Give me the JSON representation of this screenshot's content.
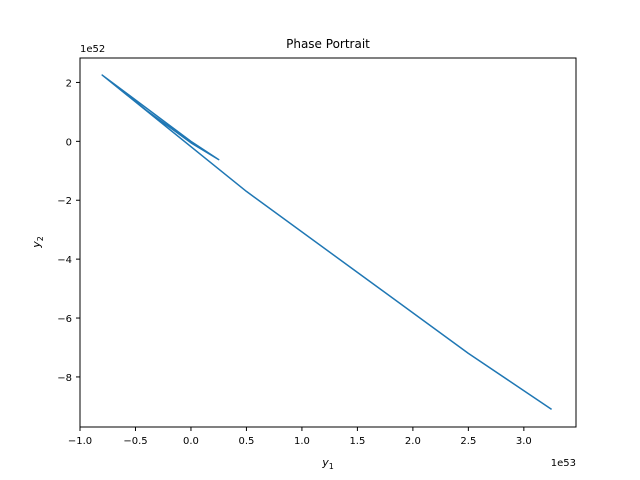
{
  "chart_data": {
    "type": "line",
    "title": "Phase Portrait",
    "xlabel": "y",
    "xlabel_sub": "1",
    "ylabel": "y",
    "ylabel_sub": "2",
    "x_offset_text": "1e53",
    "y_offset_text": "1e52",
    "x_ticks": [
      -1.0,
      -0.5,
      0.0,
      0.5,
      1.0,
      1.5,
      2.0,
      2.5,
      3.0
    ],
    "x_tick_labels": [
      "−1.0",
      "−0.5",
      "0.0",
      "0.5",
      "1.0",
      "1.5",
      "2.0",
      "2.5",
      "3.0"
    ],
    "y_ticks": [
      2,
      0,
      -2,
      -4,
      -6,
      -8
    ],
    "y_tick_labels": [
      "2",
      "0",
      "−2",
      "−4",
      "−6",
      "−8"
    ],
    "xlim": [
      -1.0,
      3.47
    ],
    "ylim": [
      -9.7,
      2.83
    ],
    "grid": false,
    "series": [
      {
        "color": "#1f77b4",
        "x": [
          -0.8,
          -0.4,
          0.0,
          0.25,
          0.0,
          -0.8,
          0.5,
          1.5,
          2.5,
          3.25
        ],
        "y": [
          2.25,
          1.05,
          -0.05,
          -0.62,
          0.0,
          2.25,
          -1.7,
          -4.45,
          -7.2,
          -9.1
        ]
      }
    ]
  }
}
